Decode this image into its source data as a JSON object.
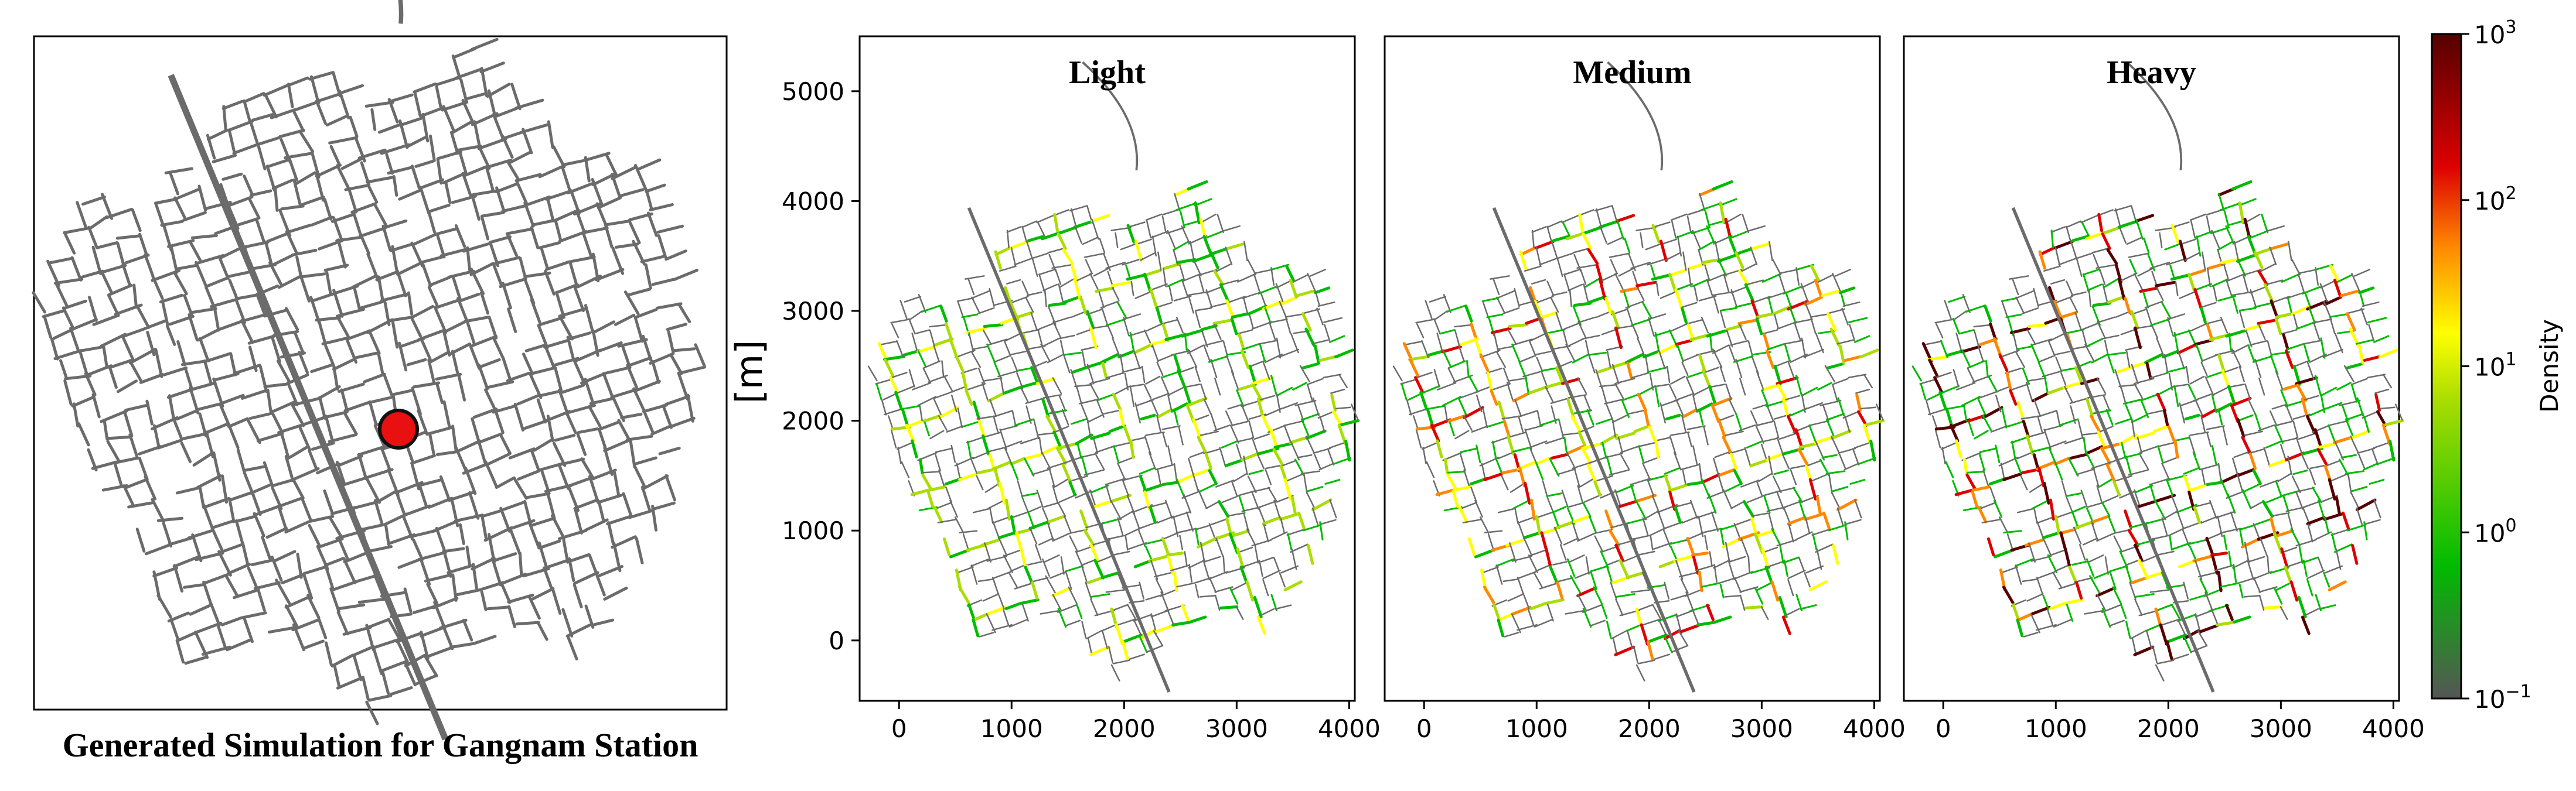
{
  "figure": {
    "caption": "Generated Simulation for Gangnam Station"
  },
  "colors": {
    "road": "#6b6b6b",
    "marker_fill": "#e81010",
    "marker_edge": "#111111",
    "colormap": [
      "#555555",
      "#00bb00",
      "#aadd00",
      "#ffff00",
      "#ff8800",
      "#dd0000",
      "#550000"
    ]
  },
  "chart_data": [
    {
      "type": "map",
      "caption": "Generated Simulation for Gangnam Station",
      "marker": {
        "label": "",
        "shape": "circle"
      }
    },
    {
      "type": "heatmap",
      "title": "Light",
      "ylabel": "[m]",
      "xlim": [
        -350,
        4050
      ],
      "ylim": [
        -550,
        5500
      ],
      "xticks": [
        0,
        1000,
        2000,
        3000,
        4000
      ],
      "yticks": [
        0,
        1000,
        2000,
        3000,
        4000,
        5000
      ],
      "density_level": "light"
    },
    {
      "type": "heatmap",
      "title": "Medium",
      "xlim": [
        -350,
        4050
      ],
      "ylim": [
        -550,
        5500
      ],
      "xticks": [
        0,
        1000,
        2000,
        3000,
        4000
      ],
      "density_level": "medium"
    },
    {
      "type": "heatmap",
      "title": "Heavy",
      "xlim": [
        -350,
        4050
      ],
      "ylim": [
        -550,
        5500
      ],
      "xticks": [
        0,
        1000,
        2000,
        3000,
        4000
      ],
      "density_level": "heavy"
    }
  ],
  "colorbar": {
    "label": "Density",
    "scale": "log",
    "range": [
      0.1,
      1000
    ],
    "ticks": [
      {
        "base": "10",
        "exp": "3",
        "value": 1000
      },
      {
        "base": "10",
        "exp": "2",
        "value": 100
      },
      {
        "base": "10",
        "exp": "1",
        "value": 10
      },
      {
        "base": "10",
        "exp": "0",
        "value": 1
      },
      {
        "base": "10",
        "exp": "−1",
        "value": 0.1
      }
    ]
  }
}
